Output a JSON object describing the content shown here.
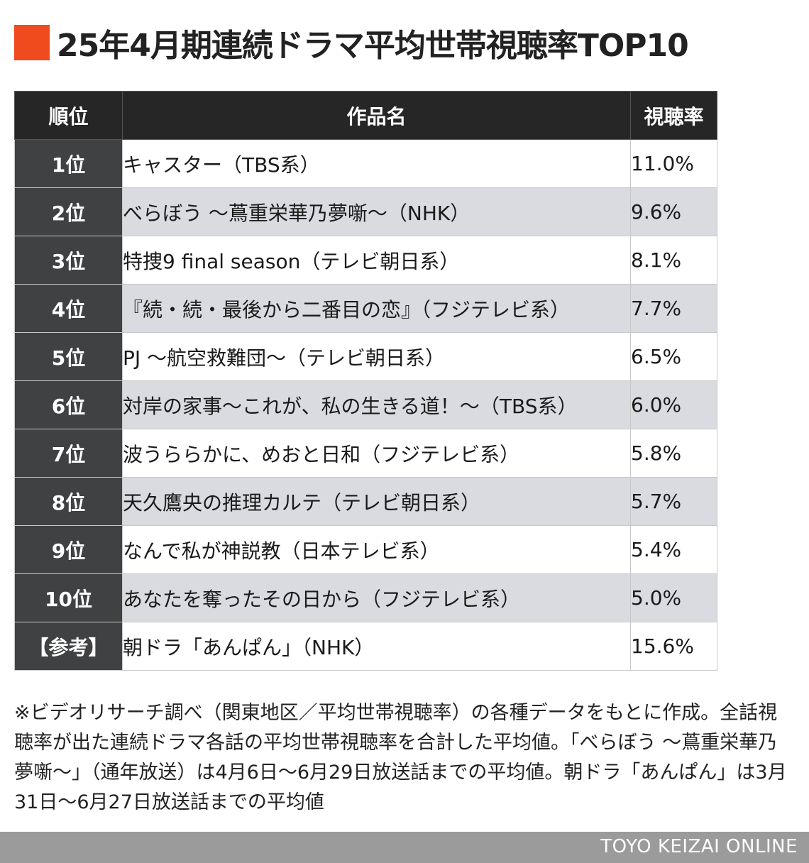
{
  "title": "25年4月期連続ドラマ平均世帯視聴率TOP10",
  "colors": {
    "accent": "#f04a1f",
    "header_bg": "#262626",
    "rank_bg": "#404142",
    "alt_row_bg": "#d9dbe0",
    "footer_bg": "#9b9b9b"
  },
  "chart_data": {
    "type": "table",
    "title": "25年4月期連続ドラマ平均世帯視聴率TOP10",
    "columns": [
      "順位",
      "作品名",
      "視聴率"
    ],
    "rows": [
      {
        "rank": "1位",
        "title": "キャスター（TBS系）",
        "rating": "11.0%"
      },
      {
        "rank": "2位",
        "title": "べらぼう 〜蔦重栄華乃夢噺〜（NHK）",
        "rating": "9.6%"
      },
      {
        "rank": "3位",
        "title": "特捜9 final season（テレビ朝日系）",
        "rating": "8.1%"
      },
      {
        "rank": "4位",
        "title": "『続・続・最後から二番目の恋』（フジテレビ系）",
        "rating": "7.7%"
      },
      {
        "rank": "5位",
        "title": "PJ 〜航空救難団〜（テレビ朝日系）",
        "rating": "6.5%"
      },
      {
        "rank": "6位",
        "title": "対岸の家事〜これが、私の生きる道！〜（TBS系）",
        "rating": "6.0%"
      },
      {
        "rank": "7位",
        "title": "波うららかに、めおと日和（フジテレビ系）",
        "rating": "5.8%"
      },
      {
        "rank": "8位",
        "title": "天久鷹央の推理カルテ（テレビ朝日系）",
        "rating": "5.7%"
      },
      {
        "rank": "9位",
        "title": "なんで私が神説教（日本テレビ系）",
        "rating": "5.4%"
      },
      {
        "rank": "10位",
        "title": "あなたを奪ったその日から（フジテレビ系）",
        "rating": "5.0%"
      },
      {
        "rank": "【参考】",
        "title": "朝ドラ「あんぱん」（NHK）",
        "rating": "15.6%"
      }
    ]
  },
  "note": "※ビデオリサーチ調べ（関東地区／平均世帯視聴率）の各種データをもとに作成。全話視聴率が出た連続ドラマ各話の平均世帯視聴率を合計した平均値。「べらぼう 〜蔦重栄華乃夢噺〜」（通年放送）は4月6日〜6月29日放送話までの平均値。朝ドラ「あんぱん」は3月31日〜6月27日放送話までの平均値",
  "footer": "TOYO KEIZAI ONLINE"
}
